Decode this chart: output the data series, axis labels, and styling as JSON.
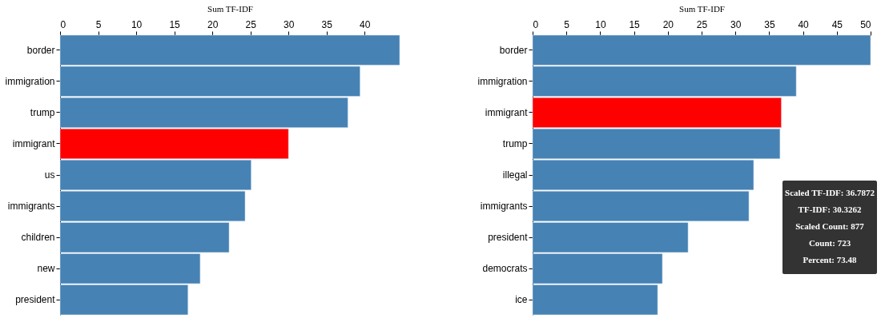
{
  "chart_data": [
    {
      "type": "bar",
      "orientation": "horizontal",
      "xlabel": "Sum TF-IDF",
      "categories": [
        "border",
        "immigration",
        "trump",
        "immigrant",
        "us",
        "immigrants",
        "children",
        "new",
        "president"
      ],
      "values": [
        44.6,
        39.4,
        37.8,
        30.0,
        25.1,
        24.3,
        22.2,
        18.4,
        16.8
      ],
      "colors": [
        "#4682b4",
        "#4682b4",
        "#4682b4",
        "#ff0000",
        "#4682b4",
        "#4682b4",
        "#4682b4",
        "#4682b4",
        "#4682b4"
      ],
      "xlim": [
        0,
        44.6
      ],
      "xticks": [
        0,
        5,
        10,
        15,
        20,
        25,
        30,
        35,
        40
      ]
    },
    {
      "type": "bar",
      "orientation": "horizontal",
      "xlabel": "Sum TF-IDF",
      "categories": [
        "border",
        "immigration",
        "immigrant",
        "trump",
        "illegal",
        "immigrants",
        "president",
        "democrats",
        "ice"
      ],
      "values": [
        50.0,
        39.0,
        36.8,
        36.6,
        32.7,
        32.0,
        23.0,
        19.2,
        18.5
      ],
      "colors": [
        "#4682b4",
        "#4682b4",
        "#ff0000",
        "#4682b4",
        "#4682b4",
        "#4682b4",
        "#4682b4",
        "#4682b4",
        "#4682b4"
      ],
      "xlim": [
        0,
        50
      ],
      "xticks": [
        0,
        5,
        10,
        15,
        20,
        25,
        30,
        35,
        40,
        45,
        50
      ],
      "annotations": [
        "Scaled TF-IDF: 36.7872",
        "TF-IDF: 30.3262",
        "Scaled Count: 877",
        "Count: 723",
        "Percent: 73.48"
      ]
    }
  ]
}
